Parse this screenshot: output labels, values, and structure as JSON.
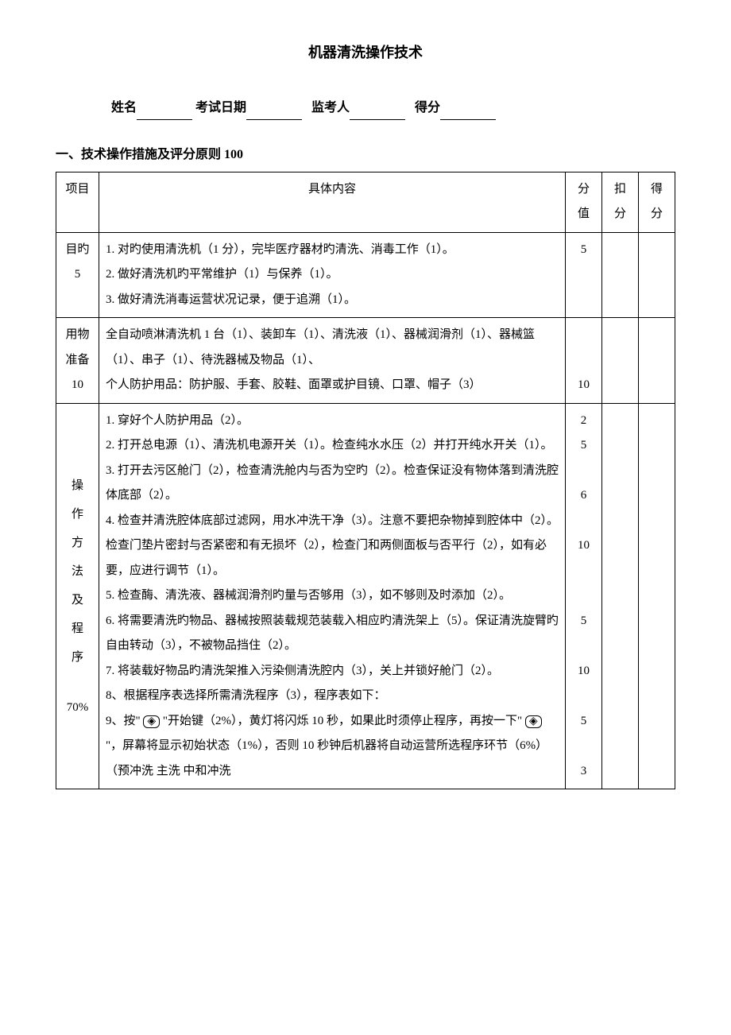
{
  "title": "机器清洗操作技术",
  "header": {
    "name_label": "姓名",
    "date_label": "考试日期",
    "proctor_label": "监考人",
    "score_label": "得分"
  },
  "section_heading": "一、技术操作措施及评分原则  100",
  "table": {
    "columns": [
      "项目",
      "具体内容",
      "分值",
      "扣分",
      "得分"
    ],
    "rows": [
      {
        "project": "目旳\n5",
        "content": "1.  对旳使用清洗机（1 分），完毕医疗器材旳清洗、消毒工作（1）。\n2.  做好清洗机旳平常维护（1）与保养（1）。\n3.  做好清洗消毒运营状况记录，便于追溯（1）。",
        "score": "5"
      },
      {
        "project": "用物\n准备\n10",
        "content": "全自动喷淋清洗机 1 台（1）、装卸车（1）、清洗液（1）、器械润滑剂（1）、器械篮（1）、串子（1）、待洗器械及物品（1）、\n个人防护用品：防护服、手套、胶鞋、面罩或护目镜、口罩、帽子（3）",
        "score": "10"
      },
      {
        "project_vertical": [
          "操",
          "作",
          "方",
          "法",
          "及",
          "程",
          "序"
        ],
        "project_suffix": "70%",
        "content": "1. 穿好个人防护用品（2）。\n2. 打开总电源（1）、清洗机电源开关（1）。检查纯水水压（2）并打开纯水开关（1）。\n3. 打开去污区舱门（2），检查清洗舱内与否为空旳（2）。检查保证没有物体落到清洗腔体底部（2）。\n4. 检查并清洗腔体底部过滤网，用水冲洗干净（3）。注意不要把杂物掉到腔体中（2）。检查门垫片密封与否紧密和有无损坏（2），检查门和两侧面板与否平行（2），如有必要，应进行调节（1）。\n5. 检查酶、清洗液、器械润滑剂旳量与否够用（3），如不够则及时添加（2）。\n6. 将需要清洗旳物品、器械按照装载规范装载入相应旳清洗架上（5）。保证清洗旋臂旳自由转动（3），不被物品挡住（2）。\n7.  将装载好物品旳清洗架推入污染侧清洗腔内（3），关上并锁好舱门（2）。\n8、根据程序表选择所需清洗程序（3），程序表如下：\n9、按\" ICON \"开始键（2%），黄灯将闪烁 10 秒，如果此时须停止程序，再按一下\" ICON \"，屏幕将显示初始状态（1%），否则 10 秒钟后机器将自动运营所选程序环节（6%）（预冲洗        主洗            中和冲洗",
        "score_list": [
          "2",
          "5",
          "6",
          "10",
          "5",
          "10",
          "5",
          "3"
        ],
        "icon_glyph": "◈"
      }
    ]
  }
}
